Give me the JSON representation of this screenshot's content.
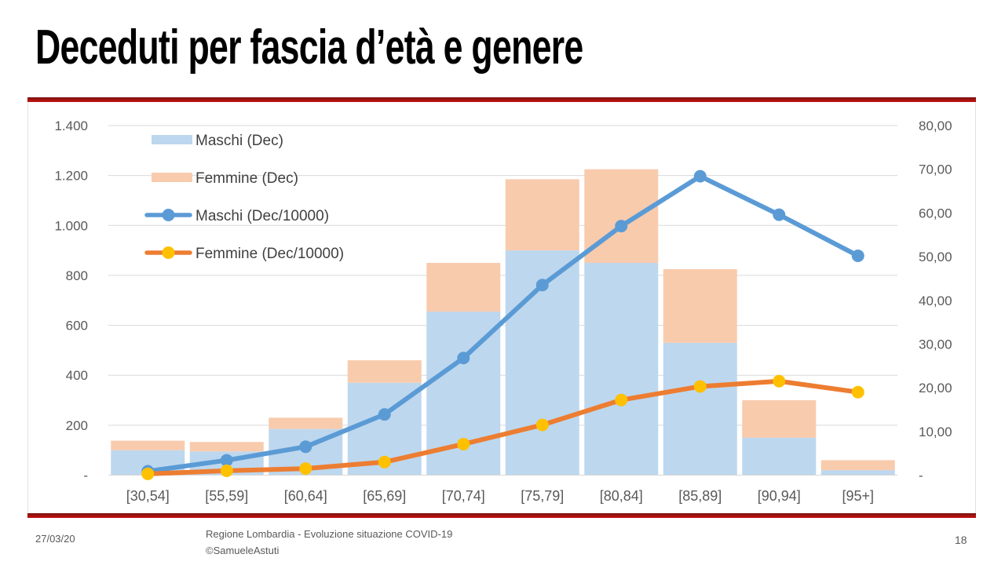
{
  "title": "Deceduti per fascia d’età e genere",
  "footer": {
    "date": "27/03/20",
    "credit_line1": "Regione Lombardia - Evoluzione situazione COVID-19",
    "credit_line2": "©SamueleAstuti",
    "page_number": "18"
  },
  "colors": {
    "maschi_bar": "#BDD7EE",
    "femmine_bar": "#F8CBAD",
    "maschi_line": "#5B9BD5",
    "femmine_line": "#ED7D31",
    "femmine_marker": "#FFC000",
    "grid": "#D9D9D9",
    "axis_text": "#595959",
    "legend_text": "#404040",
    "accent_red": "#C01210"
  },
  "chart_data": {
    "type": "combo: stacked bars (left axis) + lines with markers (right axis)",
    "categories": [
      "[30,54]",
      "[55,59]",
      "[60,64]",
      "[65,69]",
      "[70,74]",
      "[75,79]",
      "[80,84]",
      "[85,89]",
      "[90,94]",
      "[95+]"
    ],
    "series": [
      {
        "name": "Maschi (Dec)",
        "type": "bar",
        "axis": "left",
        "color": "#BDD7EE",
        "values": [
          100,
          95,
          185,
          370,
          655,
          900,
          850,
          530,
          150,
          20
        ]
      },
      {
        "name": "Femmine (Dec)",
        "type": "bar",
        "axis": "left",
        "color": "#F8CBAD",
        "values": [
          38,
          38,
          45,
          90,
          195,
          285,
          375,
          295,
          150,
          40
        ]
      },
      {
        "name": "Maschi (Dec/10000)",
        "type": "line",
        "axis": "right",
        "color": "#5B9BD5",
        "marker_color": "#5B9BD5",
        "values": [
          0.9,
          3.4,
          6.5,
          13.9,
          26.8,
          43.5,
          57.0,
          68.4,
          59.6,
          50.2
        ]
      },
      {
        "name": "Femmine (Dec/10000)",
        "type": "line",
        "axis": "right",
        "color": "#ED7D31",
        "marker_color": "#FFC000",
        "values": [
          0.3,
          1.0,
          1.5,
          3.0,
          7.1,
          11.5,
          17.2,
          20.3,
          21.5,
          19.0
        ]
      }
    ],
    "left_axis": {
      "min": 0,
      "max": 1400,
      "step": 200,
      "tick_labels": [
        "-",
        "200",
        "400",
        "600",
        "800",
        "1.000",
        "1.200",
        "1.400"
      ]
    },
    "right_axis": {
      "min": 0,
      "max": 80,
      "step": 10,
      "tick_labels": [
        "-",
        "10,00",
        "20,00",
        "30,00",
        "40,00",
        "50,00",
        "60,00",
        "70,00",
        "80,00"
      ]
    },
    "legend": [
      "Maschi (Dec)",
      "Femmine (Dec)",
      "Maschi (Dec/10000)",
      "Femmine (Dec/10000)"
    ],
    "legend_position": "top-left inside plot",
    "grid": true,
    "bars_stacked": true
  }
}
